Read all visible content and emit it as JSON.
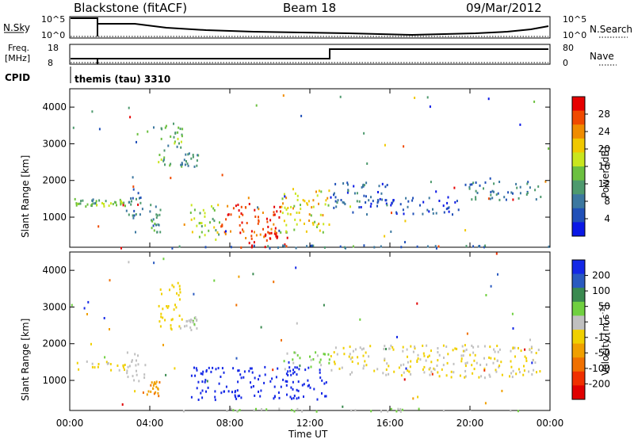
{
  "header": {
    "station": "Blackstone (fitACF)",
    "beam": "Beam 18",
    "date": "09/Mar/2012"
  },
  "top_panels": {
    "nsky_label": "N.Sky",
    "nsky_ticks": [
      "10^5",
      "10^0"
    ],
    "nsearch_label": "N.Search",
    "nsearch_ticks": [
      "10^5",
      "10^0"
    ],
    "freq_label": "Freq.",
    "freq_unit": "[MHz]",
    "freq_ticks": [
      "18",
      "8"
    ],
    "nave_label": "Nave",
    "nave_ticks": [
      "80",
      "0"
    ],
    "cpid_label": "CPID",
    "cpid_value": "themis (tau) 3310"
  },
  "colors": {
    "power_scale": [
      "#0a18e6",
      "#2050b8",
      "#3c78a0",
      "#4e9a6e",
      "#6cc040",
      "#c9e61e",
      "#f0c800",
      "#f08c00",
      "#f04a00",
      "#e60000"
    ],
    "velocity_scale": [
      "#1428e6",
      "#2a5ac0",
      "#3a8a50",
      "#70d040",
      "#c0c0c0",
      "#f0d000",
      "#f0a000",
      "#f07000",
      "#f03000",
      "#e00000"
    ]
  },
  "chart_data": [
    {
      "type": "heatmap",
      "name": "power",
      "ylabel": "Slant Range [km]",
      "ylim": [
        180,
        4500
      ],
      "yticks": [
        "4000",
        "3000",
        "2000",
        "1000"
      ],
      "xlim_hours": [
        0,
        24
      ],
      "colorbar_label": "Power [dB]",
      "colorbar_ticks": [
        "28",
        "24",
        "20",
        "16",
        "12",
        "8",
        "4"
      ],
      "colorbar_range": [
        0,
        30
      ],
      "scatter_regions": [
        {
          "t0": 0.0,
          "t1": 1.3,
          "r0": 1300,
          "r1": 1550,
          "v": 12
        },
        {
          "t0": 1.3,
          "t1": 2.8,
          "r0": 1300,
          "r1": 1500,
          "v": 14
        },
        {
          "t0": 2.8,
          "t1": 3.8,
          "r0": 1000,
          "r1": 1800,
          "v": 7
        },
        {
          "t0": 3.8,
          "t1": 4.5,
          "r0": 600,
          "r1": 1400,
          "v": 10
        },
        {
          "t0": 4.4,
          "t1": 5.6,
          "r0": 2400,
          "r1": 3700,
          "v": 12
        },
        {
          "t0": 5.5,
          "t1": 6.4,
          "r0": 2400,
          "r1": 2800,
          "v": 10
        },
        {
          "t0": 6.0,
          "t1": 7.5,
          "r0": 400,
          "r1": 1400,
          "v": 15
        },
        {
          "t0": 7.5,
          "t1": 10.5,
          "r0": 500,
          "r1": 1400,
          "v": 26
        },
        {
          "t0": 8.5,
          "t1": 11.0,
          "r0": 200,
          "r1": 700,
          "v": 27
        },
        {
          "t0": 10.5,
          "t1": 13.0,
          "r0": 600,
          "r1": 1800,
          "v": 18
        },
        {
          "t0": 13.0,
          "t1": 16.0,
          "r0": 1100,
          "r1": 2000,
          "v": 6
        },
        {
          "t0": 16.0,
          "t1": 19.5,
          "r0": 1100,
          "r1": 1600,
          "v": 4
        },
        {
          "t0": 19.5,
          "t1": 23.5,
          "r0": 1500,
          "r1": 2000,
          "v": 8
        },
        {
          "t0": 5.0,
          "t1": 24.0,
          "r0": 180,
          "r1": 260,
          "v": 7
        }
      ]
    },
    {
      "type": "heatmap",
      "name": "velocity",
      "ylabel": "Slant Range [km]",
      "ylim": [
        180,
        4500
      ],
      "yticks": [
        "4000",
        "3000",
        "2000",
        "1000"
      ],
      "xlabel": "Time UT",
      "xticks": [
        "00:00",
        "04:00",
        "08:00",
        "12:00",
        "16:00",
        "20:00",
        "00:00"
      ],
      "xlim_hours": [
        0,
        24
      ],
      "colorbar_label": "Velocity [m s",
      "colorbar_label_sup": "-1",
      "colorbar_label_end": "]",
      "colorbar_ticks": [
        "200",
        "100",
        "50",
        "15",
        "-15",
        "-50",
        "-100",
        "-200"
      ],
      "colorbar_range": [
        -250,
        250
      ],
      "scatter_regions": [
        {
          "t0": 0.0,
          "t1": 2.8,
          "r0": 1300,
          "r1": 1550,
          "v": 0
        },
        {
          "t0": 2.8,
          "t1": 3.8,
          "r0": 1000,
          "r1": 1800,
          "v": 20
        },
        {
          "t0": 3.8,
          "t1": 4.5,
          "r0": 600,
          "r1": 1000,
          "v": -90
        },
        {
          "t0": 4.4,
          "t1": 5.6,
          "r0": 2400,
          "r1": 3700,
          "v": -30
        },
        {
          "t0": 5.5,
          "t1": 6.4,
          "r0": 2400,
          "r1": 2800,
          "v": 40
        },
        {
          "t0": 6.0,
          "t1": 12.8,
          "r0": 500,
          "r1": 1400,
          "v": 220
        },
        {
          "t0": 10.5,
          "t1": 13.0,
          "r0": 1400,
          "r1": 1800,
          "v": 60
        },
        {
          "t0": 13.0,
          "t1": 23.5,
          "r0": 1100,
          "r1": 2000,
          "v": 0
        },
        {
          "t0": 5.0,
          "t1": 24.0,
          "r0": 180,
          "r1": 260,
          "v": 45
        }
      ]
    }
  ]
}
